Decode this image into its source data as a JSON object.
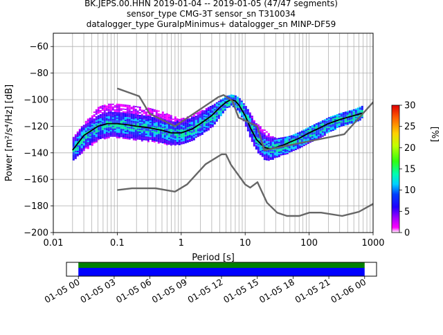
{
  "chart_data": [
    {
      "type": "heatmap",
      "title_lines": [
        "BK.JEPS.00.HHN   2019-01-04 -- 2019-01-05  (47/47 segments)",
        "sensor_type CMG-3T sensor_sn T310034",
        "datalogger_type GuralpMinimus+ datalogger_sn MINP-DF59"
      ],
      "xlabel": "Period [s]",
      "ylabel": "Power [m²/s⁴/Hz] [dB]",
      "xscale": "log",
      "xlim": [
        0.01,
        1000
      ],
      "ylim": [
        -200,
        -50
      ],
      "xticks": [
        0.01,
        0.1,
        1,
        10,
        100,
        1000
      ],
      "xtick_labels": [
        "0.01",
        "0.1",
        "1",
        "10",
        "100",
        "1000"
      ],
      "yticks": [
        -200,
        -180,
        -160,
        -140,
        -120,
        -100,
        -80,
        -60
      ],
      "ytick_labels": [
        "−200",
        "−180",
        "−160",
        "−140",
        "−120",
        "−100",
        "−80",
        "−60"
      ],
      "grid": true,
      "colorbar": {
        "label": "[%]",
        "min": 0,
        "max": 30,
        "ticks": [
          0,
          5,
          10,
          15,
          20,
          25,
          30
        ],
        "tick_labels": [
          "0",
          "5",
          "10",
          "15",
          "20",
          "25",
          "30"
        ]
      },
      "density_band": {
        "periods": [
          0.02,
          0.03,
          0.05,
          0.07,
          0.1,
          0.15,
          0.2,
          0.3,
          0.5,
          0.7,
          1,
          1.5,
          2,
          3,
          4,
          5,
          6,
          7,
          8,
          10,
          12,
          15,
          20,
          25,
          30,
          40,
          50,
          70,
          100,
          150,
          200,
          300,
          500,
          700
        ],
        "upper": [
          -128,
          -117,
          -105,
          -103,
          -103,
          -104,
          -105,
          -106,
          -109,
          -112,
          -114,
          -111,
          -108,
          -104,
          -100,
          -97,
          -96,
          -97,
          -99,
          -105,
          -111,
          -118,
          -123,
          -127,
          -129,
          -128,
          -127,
          -124,
          -120,
          -116,
          -113,
          -110,
          -107,
          -104
        ],
        "lower": [
          -145,
          -138,
          -130,
          -128,
          -128,
          -129,
          -130,
          -131,
          -133,
          -134,
          -133,
          -130,
          -126,
          -120,
          -112,
          -106,
          -104,
          -106,
          -110,
          -120,
          -130,
          -139,
          -145,
          -145,
          -143,
          -141,
          -139,
          -136,
          -132,
          -128,
          -124,
          -120,
          -117,
          -113
        ]
      },
      "series": [
        {
          "role": "mean",
          "color": "#000000",
          "x": [
            0.02,
            0.03,
            0.05,
            0.07,
            0.1,
            0.15,
            0.2,
            0.3,
            0.5,
            0.7,
            1,
            1.5,
            2,
            3,
            4,
            5,
            6,
            7,
            8,
            10,
            12,
            15,
            20,
            25,
            30,
            40,
            50,
            70,
            100,
            150,
            200,
            300,
            500,
            700
          ],
          "y": [
            -138,
            -127,
            -120,
            -118,
            -118,
            -119,
            -120,
            -121,
            -123,
            -125,
            -125,
            -122,
            -118,
            -112,
            -106,
            -102,
            -100,
            -101,
            -104,
            -112,
            -121,
            -130,
            -136,
            -137,
            -136,
            -134,
            -132,
            -129,
            -125,
            -121,
            -118,
            -115,
            -112,
            -110
          ]
        },
        {
          "role": "noise-model-high",
          "color": "#666666",
          "x": [
            0.1,
            0.22,
            0.32,
            0.8,
            3.8,
            4.6,
            6.3,
            7.9,
            15.4,
            20,
            354.8,
            10000
          ],
          "y": [
            -91.5,
            -97.4,
            -110.5,
            -120,
            -98,
            -96.5,
            -101,
            -113.5,
            -120,
            -138,
            -126,
            -48.5
          ]
        },
        {
          "role": "noise-model-low",
          "color": "#666666",
          "x": [
            0.1,
            0.17,
            0.4,
            0.8,
            1.24,
            2.4,
            4.3,
            5,
            6,
            10,
            12,
            15.6,
            21.9,
            31.6,
            45,
            70,
            101,
            154,
            328,
            600,
            10000
          ],
          "y": [
            -168,
            -166.7,
            -166.7,
            -169.2,
            -163.7,
            -148.6,
            -141.1,
            -141.1,
            -149,
            -163.8,
            -166.2,
            -162.1,
            -177.5,
            -185,
            -187.5,
            -187.5,
            -185,
            -185,
            -187.5,
            -184.4,
            -151.5
          ]
        }
      ]
    },
    {
      "type": "bar",
      "role": "data-coverage",
      "xlim": [
        "01-04 23:00",
        "01-06 01:00"
      ],
      "xtick_labels": [
        "01-05 00",
        "01-05 03",
        "01-05 06",
        "01-05 09",
        "01-05 12",
        "01-05 15",
        "01-05 18",
        "01-05 21",
        "01-06 00"
      ],
      "series": [
        {
          "name": "",
          "color": "#008000",
          "start": "01-05 00:00",
          "end": "01-06 00:00"
        },
        {
          "name": "",
          "color": "#0000ff",
          "start": "01-05 00:00",
          "end": "01-06 00:00"
        }
      ]
    }
  ]
}
